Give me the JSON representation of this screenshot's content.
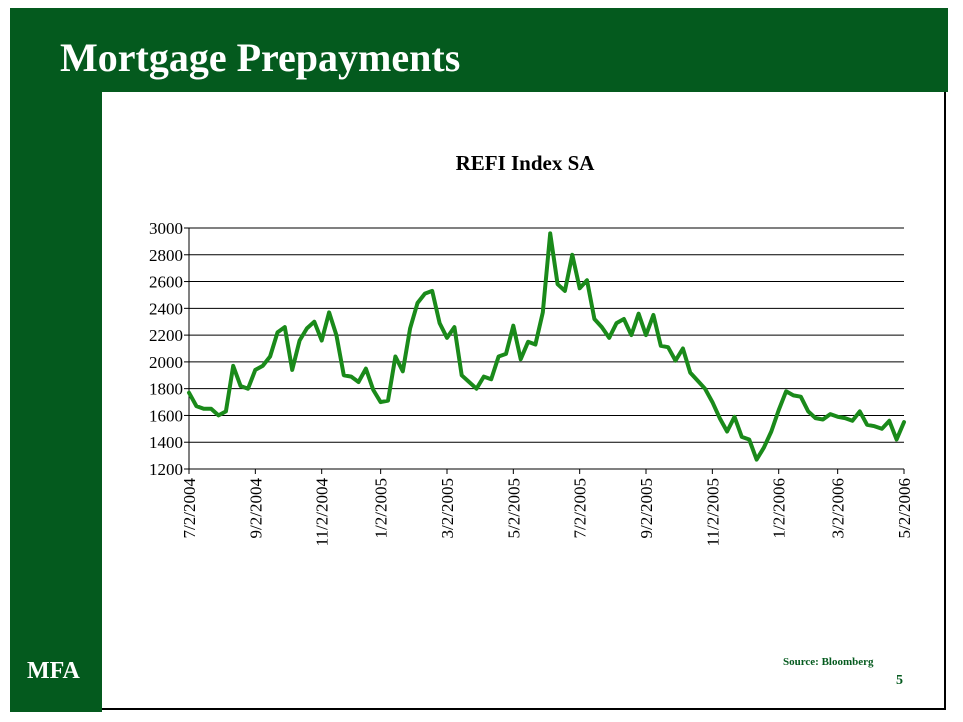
{
  "slide": {
    "title": "Mortgage Prepayments",
    "logo": "MFA",
    "source": "Source: Bloomberg",
    "page_number": "5"
  },
  "colors": {
    "brand_green": "#045a1e",
    "series_line": "#1a8a1a"
  },
  "chart_data": {
    "type": "line",
    "title": "REFI Index SA",
    "xlabel": "",
    "ylabel": "",
    "ylim": [
      1200,
      3000
    ],
    "yticks": [
      1200,
      1400,
      1600,
      1800,
      2000,
      2200,
      2400,
      2600,
      2800,
      3000
    ],
    "xticks": [
      "7/2/2004",
      "9/2/2004",
      "11/2/2004",
      "1/2/2005",
      "3/2/2005",
      "5/2/2005",
      "7/2/2005",
      "9/2/2005",
      "11/2/2005",
      "1/2/2006",
      "3/2/2006",
      "5/2/2006"
    ],
    "grid": "horizontal",
    "series": [
      {
        "values": [
          1770,
          1670,
          1650,
          1650,
          1600,
          1630,
          1970,
          1820,
          1800,
          1940,
          1970,
          2040,
          2220,
          2260,
          1940,
          2160,
          2250,
          2300,
          2160,
          2370,
          2200,
          1900,
          1890,
          1850,
          1950,
          1790,
          1700,
          1710,
          2040,
          1930,
          2250,
          2440,
          2510,
          2530,
          2290,
          2180,
          2260,
          1900,
          1850,
          1800,
          1890,
          1870,
          2040,
          2060,
          2270,
          2020,
          2150,
          2130,
          2370,
          2960,
          2580,
          2530,
          2800,
          2550,
          2610,
          2320,
          2260,
          2180,
          2290,
          2320,
          2200,
          2360,
          2200,
          2350,
          2120,
          2110,
          2010,
          2100,
          1920,
          1860,
          1800,
          1700,
          1580,
          1480,
          1590,
          1440,
          1420,
          1270,
          1360,
          1480,
          1640,
          1780,
          1750,
          1740,
          1630,
          1580,
          1570,
          1610,
          1590,
          1580,
          1560,
          1630,
          1530,
          1520,
          1500,
          1560,
          1420,
          1550
        ]
      }
    ]
  }
}
